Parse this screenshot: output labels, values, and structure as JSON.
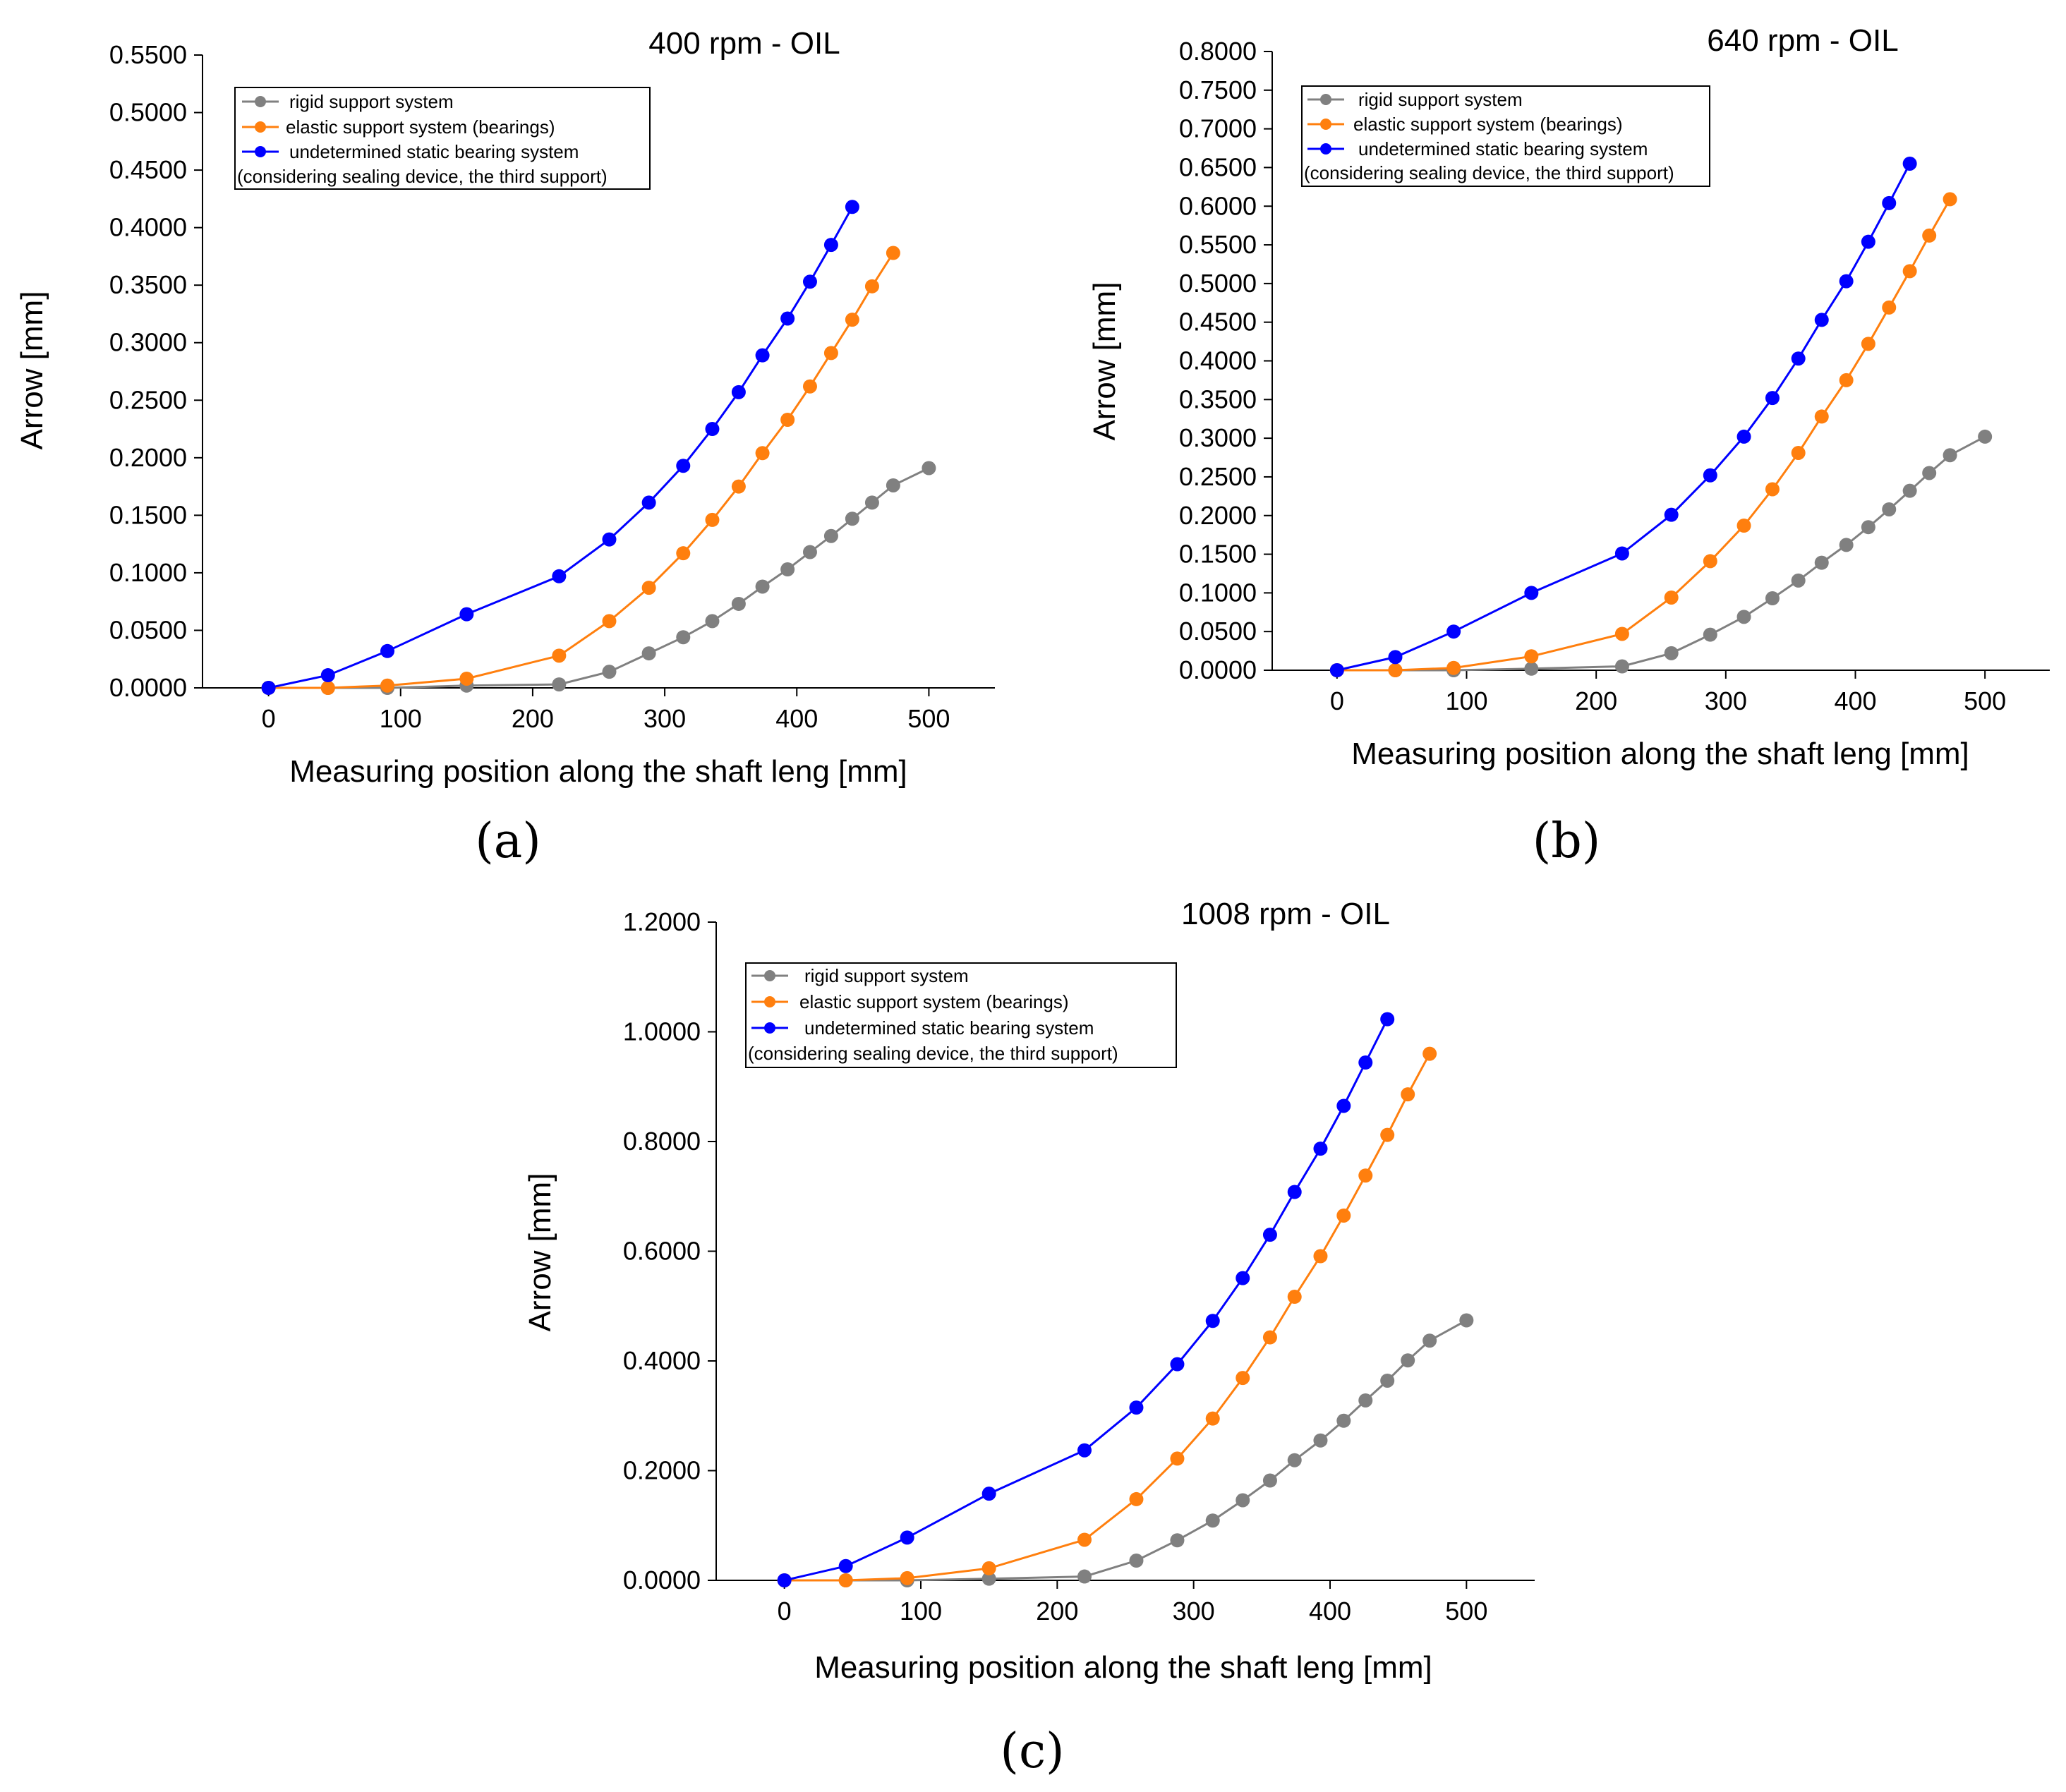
{
  "figure": {
    "panel_labels": [
      "(a)",
      "(b)",
      "(c)"
    ]
  },
  "chart_data": [
    {
      "type": "line",
      "title": "400 rpm - OIL",
      "xlabel": "Measuring position along the shaft leng [mm]",
      "ylabel": "Arrow [mm]",
      "xlim": [
        -50,
        550
      ],
      "ylim": [
        0,
        0.55
      ],
      "xticks": [
        0,
        100,
        200,
        300,
        400,
        500
      ],
      "xtick_labels": [
        "0",
        "100",
        "200",
        "300",
        "400",
        "500"
      ],
      "yticks": [
        0,
        0.05,
        0.1,
        0.15,
        0.2,
        0.25,
        0.3,
        0.35,
        0.4,
        0.45,
        0.5,
        0.55
      ],
      "ytick_labels": [
        "0.0000",
        "0.0500",
        "0.1000",
        "0.1500",
        "0.2000",
        "0.2500",
        "0.3000",
        "0.3500",
        "0.4000",
        "0.4500",
        "0.5000",
        "0.5500"
      ],
      "legend": [
        "rigid support system",
        "elastic support system (bearings)",
        "undetermined static bearing system",
        "(considering sealing device, the third support)"
      ],
      "series": [
        {
          "name": "rigid support system",
          "color": "#808080",
          "x": [
            0,
            45,
            90,
            150,
            220,
            258,
            288,
            314,
            336,
            356,
            374,
            393,
            410,
            426,
            442,
            457,
            473,
            500
          ],
          "y": [
            0,
            0,
            0,
            0.002,
            0.003,
            0.014,
            0.03,
            0.044,
            0.058,
            0.073,
            0.088,
            0.103,
            0.118,
            0.132,
            0.147,
            0.161,
            0.176,
            0.191
          ]
        },
        {
          "name": "elastic support system (bearings)",
          "color": "#FF7F0E",
          "x": [
            0,
            45,
            90,
            150,
            220,
            258,
            288,
            314,
            336,
            356,
            374,
            393,
            410,
            426,
            442,
            457,
            473
          ],
          "y": [
            0,
            0,
            0.002,
            0.008,
            0.028,
            0.058,
            0.087,
            0.117,
            0.146,
            0.175,
            0.204,
            0.233,
            0.262,
            0.291,
            0.32,
            0.349,
            0.378
          ]
        },
        {
          "name": "undetermined static bearing system",
          "color": "#0000FF",
          "x": [
            0,
            45,
            90,
            150,
            220,
            258,
            288,
            314,
            336,
            356,
            374,
            393,
            410,
            426,
            442
          ],
          "y": [
            0,
            0.011,
            0.032,
            0.064,
            0.097,
            0.129,
            0.161,
            0.193,
            0.225,
            0.257,
            0.289,
            0.321,
            0.353,
            0.385,
            0.418
          ]
        }
      ]
    },
    {
      "type": "line",
      "title": "640 rpm - OIL",
      "xlabel": "Measuring position along the shaft leng [mm]",
      "ylabel": "Arrow [mm]",
      "xlim": [
        -50,
        550
      ],
      "ylim": [
        0,
        0.8
      ],
      "xticks": [
        0,
        100,
        200,
        300,
        400,
        500
      ],
      "xtick_labels": [
        "0",
        "100",
        "200",
        "300",
        "400",
        "500"
      ],
      "yticks": [
        0,
        0.05,
        0.1,
        0.15,
        0.2,
        0.25,
        0.3,
        0.35,
        0.4,
        0.45,
        0.5,
        0.55,
        0.6,
        0.65,
        0.7,
        0.75,
        0.8
      ],
      "ytick_labels": [
        "0.0000",
        "0.0500",
        "0.1000",
        "0.1500",
        "0.2000",
        "0.2500",
        "0.3000",
        "0.3500",
        "0.4000",
        "0.4500",
        "0.5000",
        "0.5500",
        "0.6000",
        "0.6500",
        "0.7000",
        "0.7500",
        "0.8000"
      ],
      "legend": [
        "rigid support system",
        "elastic support system (bearings)",
        "undetermined static bearing system",
        "(considering sealing device, the third support)"
      ],
      "series": [
        {
          "name": "rigid support system",
          "color": "#808080",
          "x": [
            0,
            45,
            90,
            150,
            220,
            258,
            288,
            314,
            336,
            356,
            374,
            393,
            410,
            426,
            442,
            457,
            473,
            500
          ],
          "y": [
            0,
            0,
            0,
            0.002,
            0.005,
            0.022,
            0.046,
            0.069,
            0.093,
            0.116,
            0.139,
            0.162,
            0.185,
            0.208,
            0.232,
            0.255,
            0.278,
            0.302
          ]
        },
        {
          "name": "elastic support system (bearings)",
          "color": "#FF7F0E",
          "x": [
            0,
            45,
            90,
            150,
            220,
            258,
            288,
            314,
            336,
            356,
            374,
            393,
            410,
            426,
            442,
            457,
            473
          ],
          "y": [
            0,
            0,
            0.003,
            0.018,
            0.047,
            0.094,
            0.141,
            0.187,
            0.234,
            0.281,
            0.328,
            0.375,
            0.422,
            0.469,
            0.516,
            0.562,
            0.609
          ]
        },
        {
          "name": "undetermined static bearing system",
          "color": "#0000FF",
          "x": [
            0,
            45,
            90,
            150,
            220,
            258,
            288,
            314,
            336,
            356,
            374,
            393,
            410,
            426,
            442
          ],
          "y": [
            0,
            0.017,
            0.05,
            0.1,
            0.151,
            0.201,
            0.252,
            0.302,
            0.352,
            0.403,
            0.453,
            0.503,
            0.554,
            0.604,
            0.655
          ]
        }
      ]
    },
    {
      "type": "line",
      "title": "1008 rpm - OIL",
      "xlabel": "Measuring position along the shaft leng [mm]",
      "ylabel": "Arrow [mm]",
      "xlim": [
        -50,
        550
      ],
      "ylim": [
        0,
        1.2
      ],
      "xticks": [
        0,
        100,
        200,
        300,
        400,
        500
      ],
      "xtick_labels": [
        "0",
        "100",
        "200",
        "300",
        "400",
        "500"
      ],
      "yticks": [
        0,
        0.2,
        0.4,
        0.6,
        0.8,
        1.0,
        1.2
      ],
      "ytick_labels": [
        "0.0000",
        "0.2000",
        "0.4000",
        "0.6000",
        "0.8000",
        "1.0000",
        "1.2000"
      ],
      "legend": [
        "rigid support system",
        "elastic support system (bearings)",
        "undetermined static bearing system",
        "(considering sealing device, the third support)"
      ],
      "series": [
        {
          "name": "rigid support system",
          "color": "#808080",
          "x": [
            0,
            45,
            90,
            150,
            220,
            258,
            288,
            314,
            336,
            356,
            374,
            393,
            410,
            426,
            442,
            457,
            473,
            500
          ],
          "y": [
            0,
            0,
            0,
            0.003,
            0.007,
            0.036,
            0.073,
            0.109,
            0.146,
            0.182,
            0.219,
            0.255,
            0.291,
            0.328,
            0.364,
            0.401,
            0.437,
            0.474
          ]
        },
        {
          "name": "elastic support system (bearings)",
          "color": "#FF7F0E",
          "x": [
            0,
            45,
            90,
            150,
            220,
            258,
            288,
            314,
            336,
            356,
            374,
            393,
            410,
            426,
            442,
            457,
            473
          ],
          "y": [
            0,
            0,
            0.004,
            0.022,
            0.074,
            0.148,
            0.222,
            0.295,
            0.369,
            0.443,
            0.517,
            0.591,
            0.665,
            0.738,
            0.812,
            0.886,
            0.96
          ]
        },
        {
          "name": "undetermined static bearing system",
          "color": "#0000FF",
          "x": [
            0,
            45,
            90,
            150,
            220,
            258,
            288,
            314,
            336,
            356,
            374,
            393,
            410,
            426,
            442
          ],
          "y": [
            0,
            0.026,
            0.078,
            0.158,
            0.237,
            0.315,
            0.394,
            0.473,
            0.551,
            0.63,
            0.708,
            0.787,
            0.865,
            0.944,
            1.023
          ]
        }
      ]
    }
  ]
}
